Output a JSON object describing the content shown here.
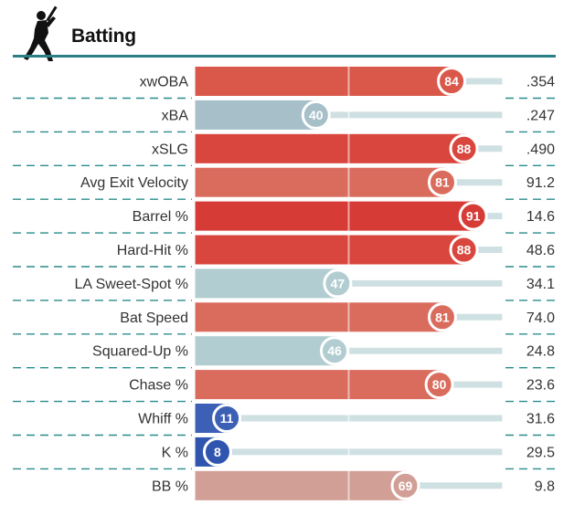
{
  "section": {
    "title": "Batting",
    "icon": "batter-silhouette-icon"
  },
  "colors": {
    "accent_rule": "#2b7f84",
    "track": "#cfe0e3",
    "dash": "#2b8c8c"
  },
  "chart_data": {
    "type": "bar",
    "orientation": "horizontal",
    "title": "Batting",
    "xlim": [
      0,
      100
    ],
    "grid": true,
    "categories": [
      "xwOBA",
      "xBA",
      "xSLG",
      "Avg Exit Velocity",
      "Barrel %",
      "Hard-Hit %",
      "LA Sweet-Spot %",
      "Bat Speed",
      "Squared-Up %",
      "Chase %",
      "Whiff %",
      "K %",
      "BB %"
    ],
    "percentiles": [
      84,
      40,
      88,
      81,
      91,
      88,
      47,
      81,
      46,
      80,
      11,
      8,
      69
    ],
    "stat_values": [
      ".354",
      ".247",
      ".490",
      "91.2",
      "14.6",
      "48.6",
      "34.1",
      "74.0",
      "24.8",
      "23.6",
      "31.6",
      "29.5",
      "9.8"
    ],
    "colors": [
      "#d9584a",
      "#a6bfc9",
      "#d9463d",
      "#da6c5e",
      "#d63b36",
      "#d9463d",
      "#b2cdd1",
      "#da6c5e",
      "#b2cdd1",
      "#da6c5e",
      "#3c60b5",
      "#3055ae",
      "#d29f96"
    ]
  }
}
